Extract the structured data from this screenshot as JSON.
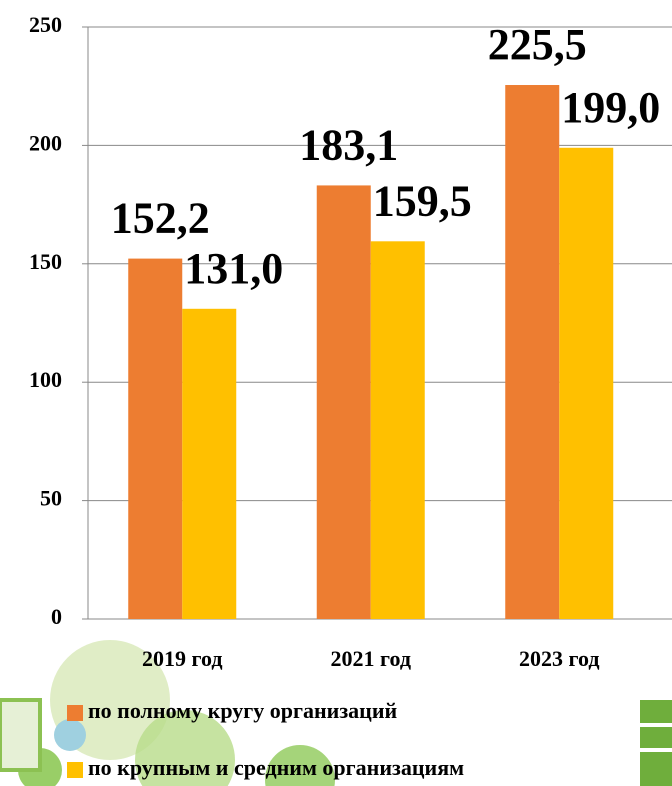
{
  "chart_data": {
    "type": "bar",
    "categories": [
      "2019 год",
      "2021 год",
      "2023 год"
    ],
    "series": [
      {
        "name": "по полному кругу организаций",
        "color": "#ED7D31",
        "values": [
          152.2,
          183.1,
          225.5
        ],
        "value_labels": [
          "152,2",
          "183,1",
          "225,5"
        ]
      },
      {
        "name": "по крупным и средним организациям",
        "color": "#FFC000",
        "values": [
          131.0,
          159.5,
          199.0
        ],
        "value_labels": [
          "131,0",
          "159,5",
          "199,0"
        ]
      }
    ],
    "ylim": [
      0,
      250
    ],
    "yticks": [
      0,
      50,
      100,
      150,
      200,
      250
    ],
    "grid": true
  }
}
